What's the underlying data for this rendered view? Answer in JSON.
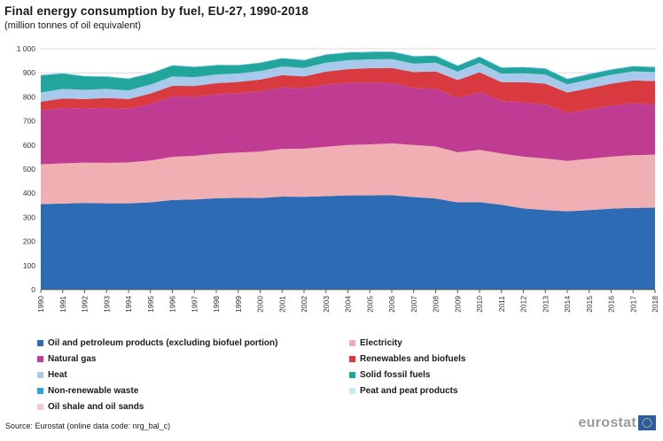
{
  "header": {
    "title": "Final energy consumption by fuel, EU-27, 1990-2018",
    "subtitle": "(million tonnes of oil equivalent)"
  },
  "chart_data": {
    "type": "area",
    "stacked": true,
    "title": "Final energy consumption by fuel, EU-27, 1990-2018",
    "ylabel": "million tonnes of oil equivalent",
    "xlabel": "",
    "ylim": [
      0,
      1000
    ],
    "ytick_step": 100,
    "grid": true,
    "legend_position": "bottom",
    "x": [
      1990,
      1991,
      1992,
      1993,
      1994,
      1995,
      1996,
      1997,
      1998,
      1999,
      2000,
      2001,
      2002,
      2003,
      2004,
      2005,
      2006,
      2007,
      2008,
      2009,
      2010,
      2011,
      2012,
      2013,
      2014,
      2015,
      2016,
      2017,
      2018
    ],
    "series": [
      {
        "name": "Oil and petroleum products (excluding biofuel portion)",
        "color": "#2d6cb4",
        "values": [
          355,
          357,
          360,
          358,
          358,
          362,
          372,
          374,
          379,
          381,
          380,
          386,
          385,
          388,
          391,
          391,
          392,
          384,
          378,
          362,
          363,
          352,
          337,
          330,
          325,
          330,
          336,
          339,
          340
        ]
      },
      {
        "name": "Electricity",
        "color": "#f0afb2",
        "values": [
          165,
          167,
          167,
          168,
          170,
          174,
          179,
          181,
          185,
          188,
          193,
          198,
          200,
          205,
          209,
          212,
          215,
          216,
          216,
          208,
          217,
          213,
          215,
          214,
          209,
          213,
          216,
          219,
          220
        ]
      },
      {
        "name": "Natural gas",
        "color": "#c03b92",
        "values": [
          222,
          230,
          225,
          228,
          222,
          235,
          252,
          245,
          247,
          246,
          250,
          256,
          250,
          258,
          259,
          257,
          251,
          236,
          240,
          225,
          240,
          218,
          225,
          225,
          199,
          205,
          212,
          216,
          209
        ]
      },
      {
        "name": "Renewables and biofuels",
        "color": "#d93a40",
        "values": [
          38,
          39,
          39,
          41,
          41,
          43,
          43,
          45,
          46,
          47,
          49,
          50,
          50,
          54,
          56,
          59,
          62,
          67,
          72,
          75,
          82,
          78,
          84,
          86,
          85,
          88,
          91,
          94,
          97
        ]
      },
      {
        "name": "Heat",
        "color": "#a9c9ec",
        "values": [
          38,
          40,
          38,
          38,
          36,
          37,
          39,
          37,
          36,
          35,
          35,
          36,
          35,
          37,
          37,
          37,
          37,
          35,
          36,
          35,
          39,
          35,
          37,
          38,
          34,
          36,
          37,
          38,
          37
        ]
      },
      {
        "name": "Solid fossil fuels",
        "color": "#22a69c",
        "values": [
          70,
          63,
          55,
          50,
          47,
          45,
          44,
          41,
          37,
          33,
          33,
          33,
          31,
          32,
          31,
          29,
          29,
          28,
          26,
          22,
          23,
          23,
          23,
          22,
          20,
          20,
          19,
          19,
          18
        ]
      },
      {
        "name": "Non-renewable waste",
        "color": "#2aa6de",
        "values": [
          2,
          2,
          2,
          2,
          2,
          2,
          2,
          2,
          2,
          2,
          2,
          2,
          2,
          2,
          2,
          2,
          2,
          3,
          3,
          3,
          3,
          3,
          3,
          3,
          3,
          3,
          3,
          3,
          3
        ]
      },
      {
        "name": "Peat and peat products",
        "color": "#c4eaf1",
        "values": [
          1.5,
          1.5,
          1.4,
          1.4,
          1.3,
          1.3,
          1.3,
          1.2,
          1.2,
          1.1,
          1.1,
          1.1,
          1,
          1,
          1,
          1,
          1,
          1,
          1,
          0.9,
          1,
          0.9,
          0.9,
          0.8,
          0.7,
          0.7,
          0.7,
          0.6,
          0.6
        ]
      },
      {
        "name": "Oil shale and oil sands",
        "color": "#f7c5ce",
        "values": [
          0.3,
          0.3,
          0.3,
          0.3,
          0.3,
          0.3,
          0.3,
          0.3,
          0.3,
          0.3,
          0.3,
          0.3,
          0.3,
          0.3,
          0.3,
          0.3,
          0.3,
          0.3,
          0.3,
          0.3,
          0.3,
          0.3,
          0.3,
          0.3,
          0.3,
          0.3,
          0.3,
          0.3,
          0.3
        ]
      }
    ],
    "legend_columns": {
      "left": [
        0,
        2,
        4,
        6,
        8
      ],
      "right": [
        1,
        3,
        5,
        7
      ]
    }
  },
  "footer": {
    "source": "Source: Eurostat (online data code: nrg_bal_c)",
    "logo_text": "eurostat"
  }
}
